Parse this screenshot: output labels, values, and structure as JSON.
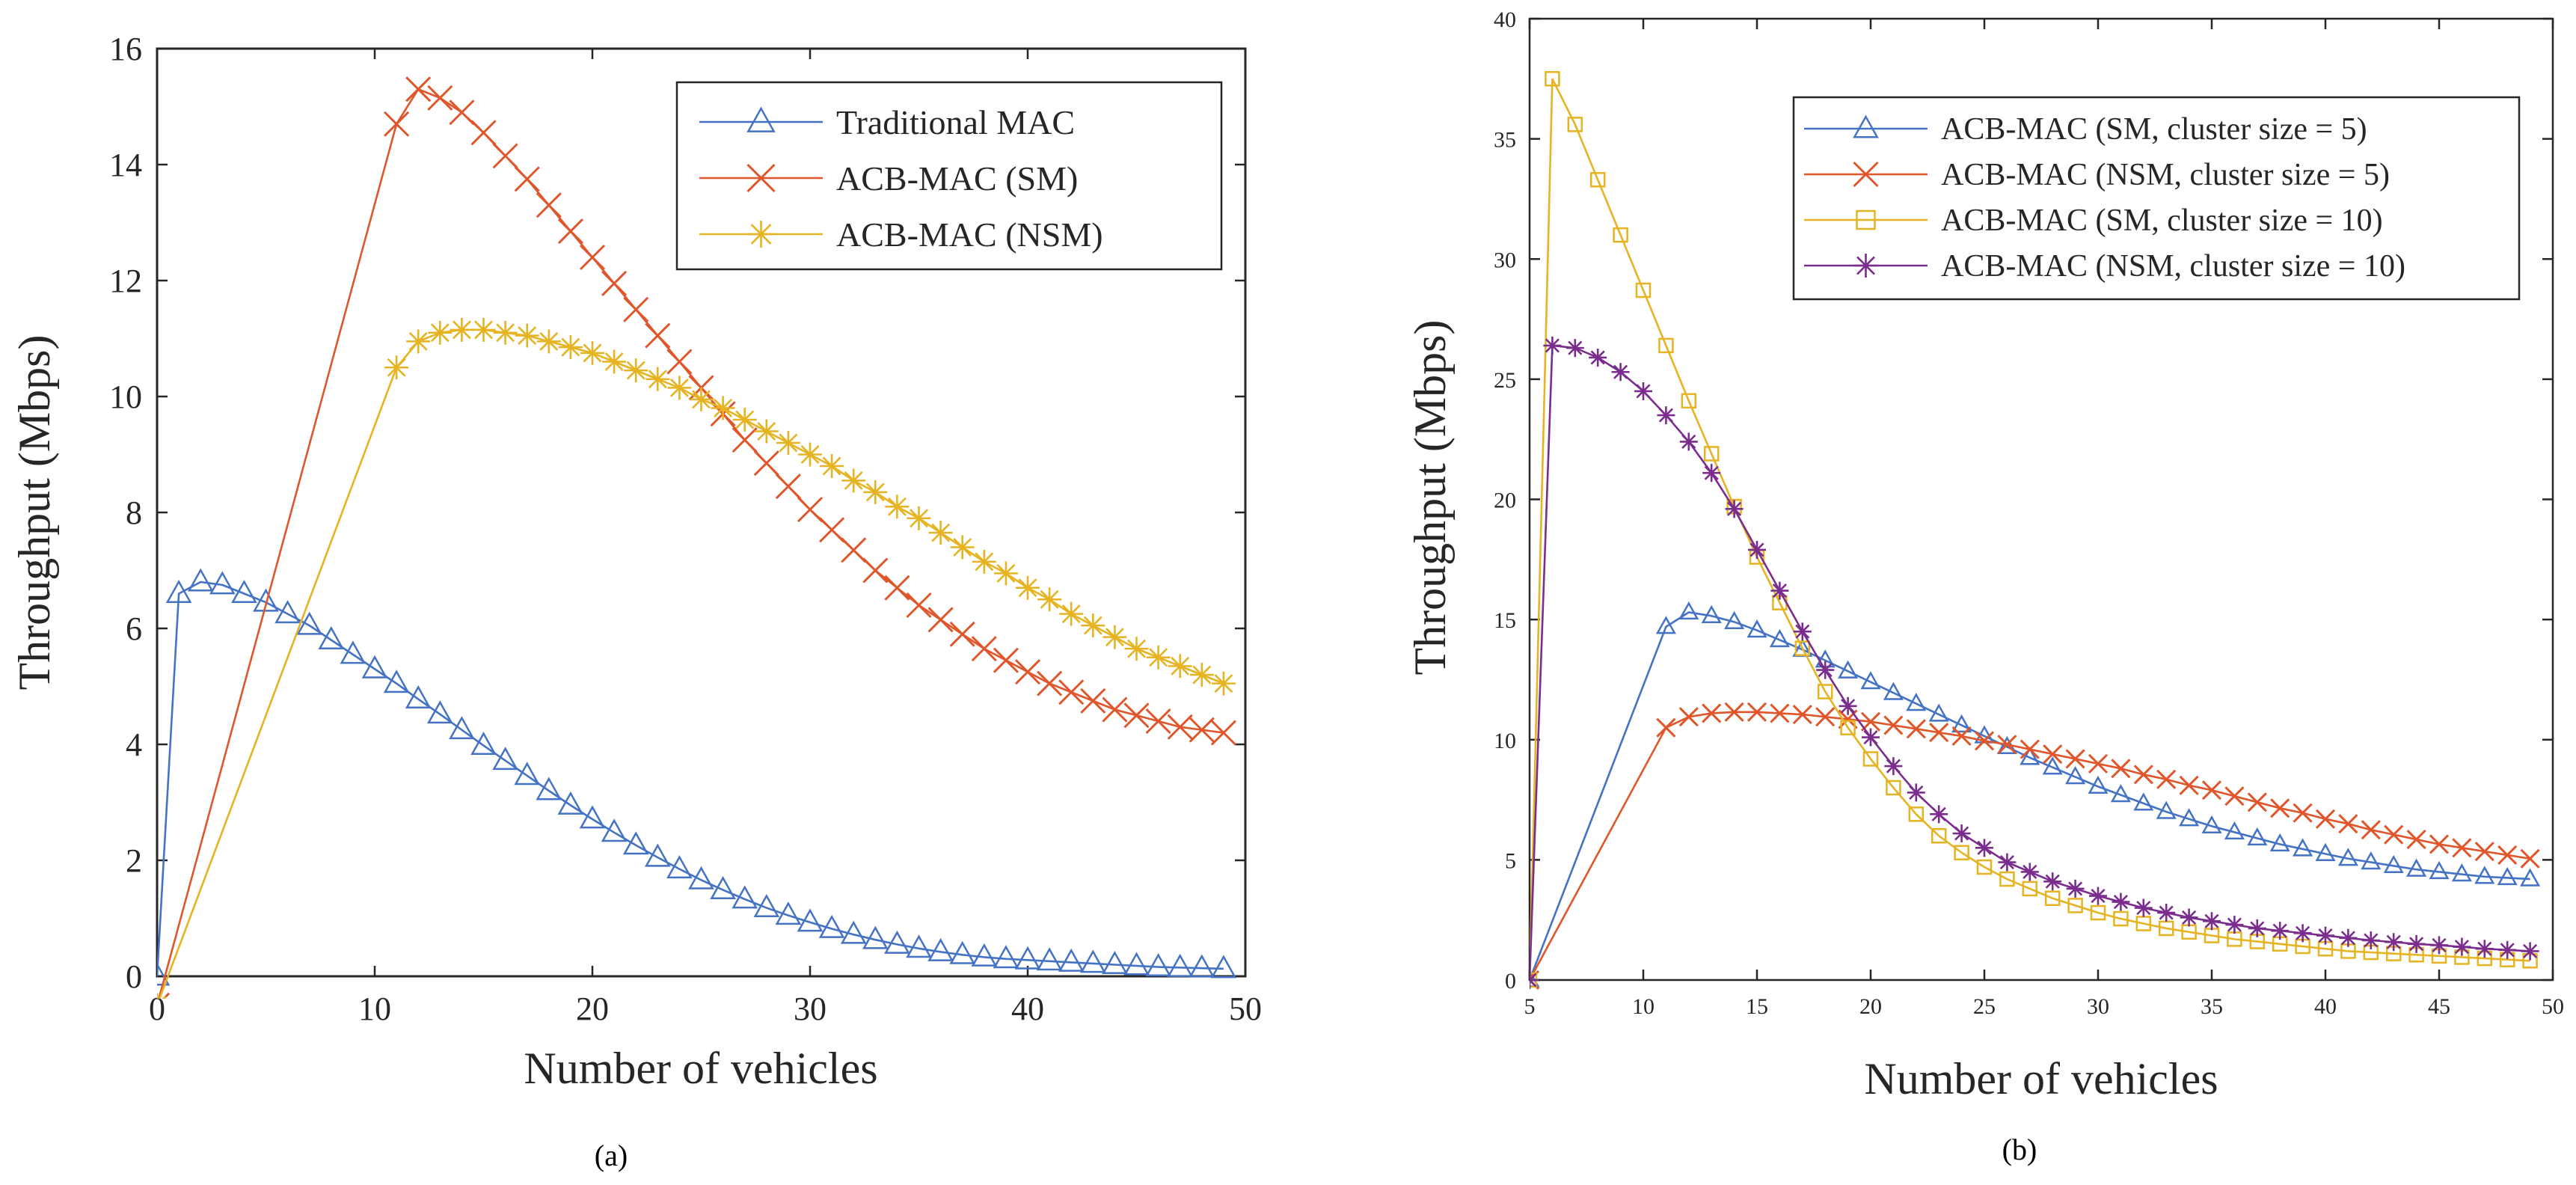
{
  "chart_data": [
    {
      "type": "line",
      "caption": "(a)",
      "xlabel": "Number of vehicles",
      "ylabel": "Throughput (Mbps)",
      "xlim": [
        0,
        50
      ],
      "ylim": [
        0,
        16
      ],
      "xticks": [
        0,
        10,
        20,
        30,
        40,
        50
      ],
      "yticks": [
        0,
        2,
        4,
        6,
        8,
        10,
        12,
        14,
        16
      ],
      "legend_position": "top-right",
      "series": [
        {
          "name": "Traditional MAC",
          "color": "#4472c4",
          "marker": "triangle",
          "x": [
            0,
            1,
            2,
            3,
            4,
            5,
            6,
            7,
            8,
            9,
            10,
            11,
            12,
            13,
            14,
            15,
            16,
            17,
            18,
            19,
            20,
            21,
            22,
            23,
            24,
            25,
            26,
            27,
            28,
            29,
            30,
            31,
            32,
            33,
            34,
            35,
            36,
            37,
            38,
            39,
            40,
            41,
            42,
            43,
            44,
            45,
            46,
            47,
            48,
            49
          ],
          "values": [
            0,
            6.6,
            6.8,
            6.75,
            6.6,
            6.45,
            6.25,
            6.05,
            5.8,
            5.55,
            5.3,
            5.05,
            4.78,
            4.52,
            4.25,
            3.98,
            3.72,
            3.46,
            3.2,
            2.95,
            2.71,
            2.48,
            2.26,
            2.05,
            1.85,
            1.66,
            1.49,
            1.33,
            1.18,
            1.05,
            0.93,
            0.82,
            0.72,
            0.63,
            0.55,
            0.48,
            0.42,
            0.37,
            0.33,
            0.3,
            0.28,
            0.26,
            0.24,
            0.22,
            0.2,
            0.18,
            0.16,
            0.15,
            0.14,
            0.13
          ]
        },
        {
          "name": "ACB-MAC (SM)",
          "color": "#e0552a",
          "marker": "x",
          "x": [
            0,
            11,
            12,
            13,
            14,
            15,
            16,
            17,
            18,
            19,
            20,
            21,
            22,
            23,
            24,
            25,
            26,
            27,
            28,
            29,
            30,
            31,
            32,
            33,
            34,
            35,
            36,
            37,
            38,
            39,
            40,
            41,
            42,
            43,
            44,
            45,
            46,
            47,
            48,
            49
          ],
          "values": [
            -0.5,
            14.7,
            15.3,
            15.15,
            14.9,
            14.55,
            14.15,
            13.75,
            13.3,
            12.85,
            12.4,
            11.95,
            11.5,
            11.05,
            10.6,
            10.15,
            9.7,
            9.25,
            8.85,
            8.45,
            8.05,
            7.7,
            7.35,
            7.0,
            6.7,
            6.4,
            6.15,
            5.9,
            5.65,
            5.45,
            5.25,
            5.05,
            4.9,
            4.75,
            4.6,
            4.5,
            4.4,
            4.3,
            4.25,
            4.2
          ]
        },
        {
          "name": "ACB-MAC (NSM)",
          "color": "#e6b422",
          "marker": "star",
          "x": [
            0,
            11,
            12,
            13,
            14,
            15,
            16,
            17,
            18,
            19,
            20,
            21,
            22,
            23,
            24,
            25,
            26,
            27,
            28,
            29,
            30,
            31,
            32,
            33,
            34,
            35,
            36,
            37,
            38,
            39,
            40,
            41,
            42,
            43,
            44,
            45,
            46,
            47,
            48,
            49
          ],
          "values": [
            -0.5,
            10.5,
            10.95,
            11.1,
            11.15,
            11.15,
            11.1,
            11.05,
            10.95,
            10.85,
            10.75,
            10.6,
            10.45,
            10.3,
            10.15,
            9.95,
            9.8,
            9.6,
            9.4,
            9.2,
            9.0,
            8.8,
            8.55,
            8.35,
            8.1,
            7.9,
            7.65,
            7.4,
            7.15,
            6.95,
            6.7,
            6.5,
            6.25,
            6.05,
            5.85,
            5.65,
            5.5,
            5.35,
            5.2,
            5.05
          ]
        }
      ]
    },
    {
      "type": "line",
      "caption": "(b)",
      "xlabel": "Number of vehicles",
      "ylabel": "Throughput (Mbps)",
      "xlim": [
        5,
        50
      ],
      "ylim": [
        0,
        40
      ],
      "xticks": [
        5,
        10,
        15,
        20,
        25,
        30,
        35,
        40,
        45,
        50
      ],
      "yticks": [
        0,
        5,
        10,
        15,
        20,
        25,
        30,
        35,
        40
      ],
      "legend_position": "top-right",
      "series": [
        {
          "name": "ACB-MAC (SM, cluster size = 5)",
          "color": "#4472c4",
          "marker": "triangle",
          "x": [
            5,
            11,
            12,
            13,
            14,
            15,
            16,
            17,
            18,
            19,
            20,
            21,
            22,
            23,
            24,
            25,
            26,
            27,
            28,
            29,
            30,
            31,
            32,
            33,
            34,
            35,
            36,
            37,
            38,
            39,
            40,
            41,
            42,
            43,
            44,
            45,
            46,
            47,
            48,
            49
          ],
          "values": [
            0,
            14.7,
            15.3,
            15.15,
            14.9,
            14.55,
            14.15,
            13.75,
            13.3,
            12.85,
            12.4,
            11.95,
            11.5,
            11.05,
            10.6,
            10.15,
            9.7,
            9.25,
            8.85,
            8.45,
            8.05,
            7.7,
            7.35,
            7.0,
            6.7,
            6.4,
            6.15,
            5.9,
            5.65,
            5.45,
            5.25,
            5.05,
            4.9,
            4.75,
            4.6,
            4.5,
            4.4,
            4.3,
            4.25,
            4.2
          ]
        },
        {
          "name": "ACB-MAC (NSM, cluster size = 5)",
          "color": "#e0552a",
          "marker": "x",
          "x": [
            5,
            11,
            12,
            13,
            14,
            15,
            16,
            17,
            18,
            19,
            20,
            21,
            22,
            23,
            24,
            25,
            26,
            27,
            28,
            29,
            30,
            31,
            32,
            33,
            34,
            35,
            36,
            37,
            38,
            39,
            40,
            41,
            42,
            43,
            44,
            45,
            46,
            47,
            48,
            49
          ],
          "values": [
            0,
            10.5,
            10.95,
            11.1,
            11.15,
            11.15,
            11.1,
            11.05,
            10.95,
            10.85,
            10.75,
            10.6,
            10.45,
            10.3,
            10.15,
            9.95,
            9.8,
            9.6,
            9.4,
            9.2,
            9.0,
            8.8,
            8.55,
            8.35,
            8.1,
            7.9,
            7.65,
            7.4,
            7.15,
            6.95,
            6.7,
            6.5,
            6.25,
            6.05,
            5.85,
            5.65,
            5.5,
            5.35,
            5.2,
            5.05
          ]
        },
        {
          "name": "ACB-MAC (SM, cluster size = 10)",
          "color": "#e6b422",
          "marker": "square",
          "x": [
            5,
            6,
            7,
            8,
            9,
            10,
            11,
            12,
            13,
            14,
            15,
            16,
            17,
            18,
            19,
            20,
            21,
            22,
            23,
            24,
            25,
            26,
            27,
            28,
            29,
            30,
            31,
            32,
            33,
            34,
            35,
            36,
            37,
            38,
            39,
            40,
            41,
            42,
            43,
            44,
            45,
            46,
            47,
            48,
            49
          ],
          "values": [
            0,
            37.5,
            35.6,
            33.3,
            31.0,
            28.7,
            26.4,
            24.1,
            21.9,
            19.7,
            17.6,
            15.7,
            13.8,
            12.0,
            10.5,
            9.2,
            8.0,
            6.9,
            6.0,
            5.3,
            4.7,
            4.2,
            3.8,
            3.4,
            3.1,
            2.8,
            2.55,
            2.35,
            2.15,
            2.0,
            1.85,
            1.7,
            1.6,
            1.5,
            1.4,
            1.3,
            1.2,
            1.15,
            1.1,
            1.05,
            1.0,
            0.95,
            0.9,
            0.85,
            0.8
          ]
        },
        {
          "name": "ACB-MAC (NSM, cluster size = 10)",
          "color": "#7b2d8e",
          "marker": "star",
          "x": [
            5,
            6,
            7,
            8,
            9,
            10,
            11,
            12,
            13,
            14,
            15,
            16,
            17,
            18,
            19,
            20,
            21,
            22,
            23,
            24,
            25,
            26,
            27,
            28,
            29,
            30,
            31,
            32,
            33,
            34,
            35,
            36,
            37,
            38,
            39,
            40,
            41,
            42,
            43,
            44,
            45,
            46,
            47,
            48,
            49
          ],
          "values": [
            0,
            26.4,
            26.3,
            25.9,
            25.3,
            24.5,
            23.5,
            22.4,
            21.1,
            19.6,
            17.9,
            16.2,
            14.5,
            12.9,
            11.4,
            10.1,
            8.9,
            7.8,
            6.9,
            6.1,
            5.5,
            4.9,
            4.5,
            4.1,
            3.8,
            3.5,
            3.25,
            3.0,
            2.8,
            2.6,
            2.45,
            2.3,
            2.15,
            2.05,
            1.95,
            1.85,
            1.75,
            1.65,
            1.58,
            1.5,
            1.45,
            1.38,
            1.3,
            1.25,
            1.2
          ]
        }
      ]
    }
  ]
}
